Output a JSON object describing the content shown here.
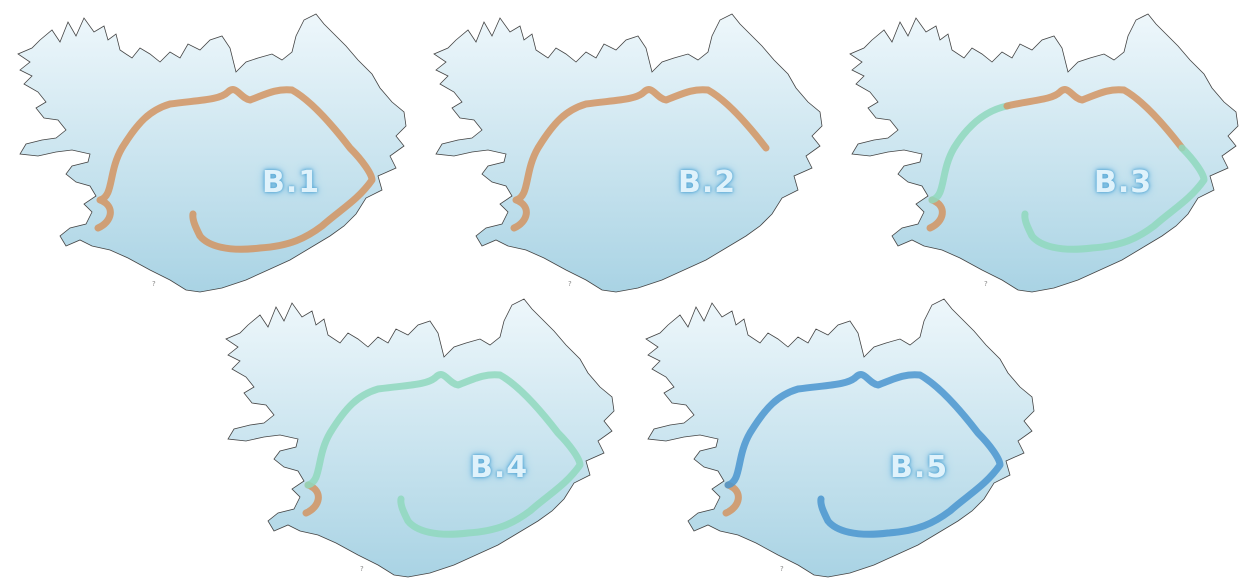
{
  "colors": {
    "land_top": "#eef7fb",
    "land_bottom": "#a9d3e4",
    "coast": "#444444",
    "route_current": "#d29461",
    "route_planned": "#8fd8bd",
    "route_new": "#4a95cf"
  },
  "maps": [
    {
      "label": "B.1",
      "marker": "?",
      "segments": [
        "route_current",
        "route_current"
      ]
    },
    {
      "label": "B.2",
      "marker": "?",
      "segments": [
        "route_current"
      ]
    },
    {
      "label": "B.3",
      "marker": "?",
      "segments": [
        "route_current",
        "route_planned",
        "route_current",
        "route_planned",
        "route_current"
      ]
    },
    {
      "label": "B.4",
      "marker": "?",
      "segments": [
        "route_current",
        "route_planned"
      ]
    },
    {
      "label": "B.5",
      "marker": "?",
      "segments": [
        "route_current",
        "route_new"
      ]
    }
  ]
}
